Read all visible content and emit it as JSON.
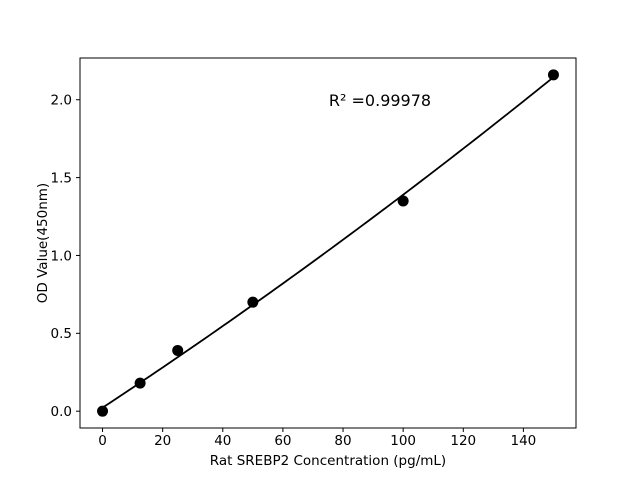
{
  "figure": {
    "background_color": "#ffffff",
    "foreground_color": "#000000"
  },
  "chart_data": {
    "type": "scatter",
    "title": "",
    "xlabel": "Rat SREBP2 Concentration (pg/mL)",
    "ylabel": "OD Value(450nm)",
    "annotation": "R² =0.99978",
    "series": [
      {
        "name": "standard-points",
        "x": [
          0,
          12.5,
          25,
          50,
          100,
          150
        ],
        "y": [
          0.0,
          0.18,
          0.39,
          0.7,
          1.35,
          2.16
        ],
        "marker": "filled-circle",
        "color": "#000000"
      }
    ],
    "fit_curve": {
      "type": "quadratic",
      "coefficients": {
        "c0": 0.0225,
        "c1": 0.012724,
        "c2": 9.5e-06
      },
      "x_start": 0,
      "x_end": 150,
      "color": "#000000"
    },
    "xticks": [
      0,
      20,
      40,
      60,
      80,
      100,
      120,
      140
    ],
    "xtick_labels": [
      "0",
      "20",
      "40",
      "60",
      "80",
      "100",
      "120",
      "140"
    ],
    "yticks": [
      0.0,
      0.5,
      1.0,
      1.5,
      2.0
    ],
    "ytick_labels": [
      "0.0",
      "0.5",
      "1.0",
      "1.5",
      "2.0"
    ],
    "xlim": [
      -7.5,
      157.5
    ],
    "ylim": [
      -0.108,
      2.268
    ],
    "grid": false,
    "legend": "none"
  }
}
